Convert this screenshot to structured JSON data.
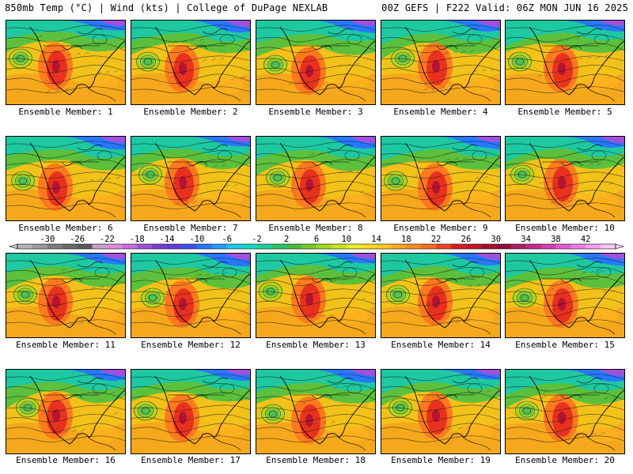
{
  "header": {
    "left": "850mb Temp (°C) | Wind (kts) | College of DuPage NEXLAB",
    "right": "00Z GEFS | F222 Valid: 06Z MON JUN 16 2025"
  },
  "colorbar": {
    "ticks": [
      "-30",
      "-26",
      "-22",
      "-18",
      "-14",
      "-10",
      "-6",
      "-2",
      "2",
      "6",
      "10",
      "14",
      "18",
      "22",
      "26",
      "30",
      "34",
      "38",
      "42"
    ],
    "colors": [
      "#b4b4b4",
      "#9a9a9a",
      "#7f7f7f",
      "#6a6a6a",
      "#5a5a5a",
      "#c8a0c8",
      "#e08ce0",
      "#c86ee6",
      "#a050dc",
      "#7840d2",
      "#5a3cdc",
      "#3c50f0",
      "#2878ff",
      "#1ea0ff",
      "#1ec8f0",
      "#14dcc8",
      "#1ed296",
      "#28c864",
      "#46be3c",
      "#78cc28",
      "#a0dc1e",
      "#c8e61e",
      "#f0f01e",
      "#ffdc1e",
      "#ffc81e",
      "#ffaa1e",
      "#ff8c1e",
      "#ff6e1e",
      "#f0461e",
      "#dc1e1e",
      "#c81428",
      "#aa0a32",
      "#960a3c",
      "#aa1e64",
      "#c8288c",
      "#dc3cb4",
      "#e65ad2",
      "#f07ae6",
      "#f8a0f0",
      "#fcc8fa"
    ]
  },
  "panel_label_prefix": "Ensemble Member: ",
  "members": [
    {
      "label": "Ensemble Member: 1"
    },
    {
      "label": "Ensemble Member: 2"
    },
    {
      "label": "Ensemble Member: 3"
    },
    {
      "label": "Ensemble Member: 4"
    },
    {
      "label": "Ensemble Member: 5"
    },
    {
      "label": "Ensemble Member: 6"
    },
    {
      "label": "Ensemble Member: 7"
    },
    {
      "label": "Ensemble Member: 8"
    },
    {
      "label": "Ensemble Member: 9"
    },
    {
      "label": "Ensemble Member: 10"
    },
    {
      "label": "Ensemble Member: 11"
    },
    {
      "label": "Ensemble Member: 12"
    },
    {
      "label": "Ensemble Member: 13"
    },
    {
      "label": "Ensemble Member: 14"
    },
    {
      "label": "Ensemble Member: 15"
    },
    {
      "label": "Ensemble Member: 16"
    },
    {
      "label": "Ensemble Member: 17"
    },
    {
      "label": "Ensemble Member: 18"
    },
    {
      "label": "Ensemble Member: 19"
    },
    {
      "label": "Ensemble Member: 20"
    }
  ]
}
